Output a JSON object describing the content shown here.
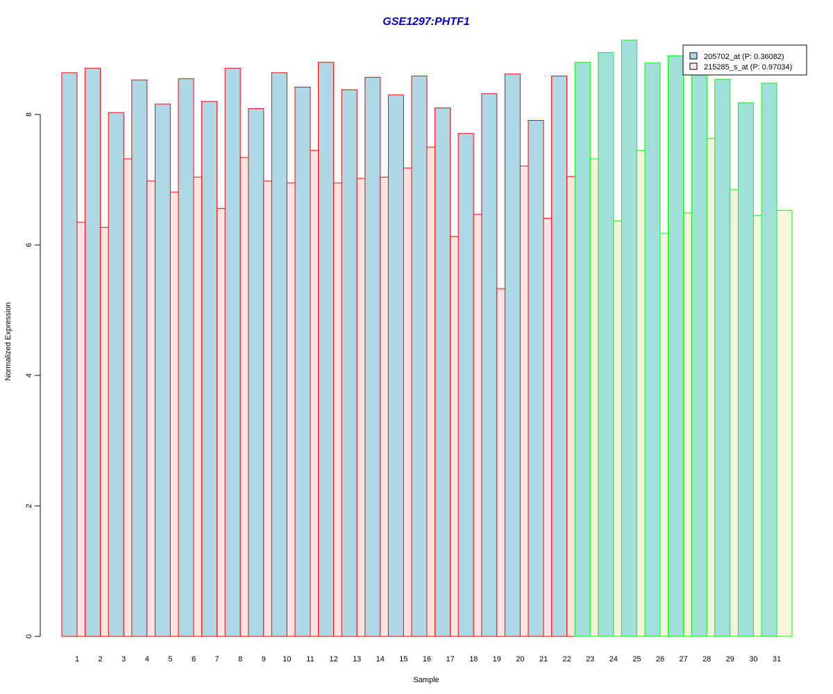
{
  "chart_data": {
    "type": "bar",
    "title": "GSE1297:PHTF1",
    "xlabel": "Sample",
    "ylabel": "Normalized Expression",
    "ylim": [
      0,
      9.2
    ],
    "yticks": [
      0,
      2,
      4,
      6,
      8
    ],
    "grid": false,
    "legend_position": "top-right",
    "categories": [
      "1",
      "2",
      "3",
      "4",
      "5",
      "6",
      "7",
      "8",
      "9",
      "10",
      "11",
      "12",
      "13",
      "14",
      "15",
      "16",
      "17",
      "18",
      "19",
      "20",
      "21",
      "22",
      "23",
      "24",
      "25",
      "26",
      "27",
      "28",
      "29",
      "30",
      "31"
    ],
    "series": [
      {
        "name": "205702_at (P: 0.36082)",
        "fill": "#add8e6",
        "values": [
          8.64,
          8.71,
          8.03,
          8.53,
          8.16,
          8.55,
          8.2,
          8.71,
          8.09,
          8.64,
          8.42,
          8.8,
          8.38,
          8.57,
          8.3,
          8.59,
          8.1,
          7.71,
          8.32,
          8.62,
          7.91,
          8.59,
          8.8,
          8.95,
          9.14,
          8.79,
          8.9,
          8.67,
          8.54,
          8.18,
          8.48
        ]
      },
      {
        "name": "215285_s_at (P: 0.97034)",
        "fill": "#ffe4e1",
        "values": [
          6.35,
          6.27,
          7.32,
          6.98,
          6.81,
          7.04,
          6.56,
          7.34,
          6.98,
          6.95,
          7.45,
          6.95,
          7.02,
          7.04,
          7.18,
          7.5,
          6.13,
          6.47,
          5.33,
          7.21,
          6.41,
          7.05,
          7.32,
          6.37,
          7.45,
          6.18,
          6.49,
          7.63,
          6.85,
          6.45,
          6.53
        ]
      }
    ],
    "groups": [
      {
        "border": "#ff0000",
        "alt_fill": "#ffe4e1",
        "count": 22
      },
      {
        "border": "#00ff00",
        "alt_fill": "#f5f5dc",
        "count": 9
      }
    ],
    "group2_primary_fill": "#a0e0d8"
  }
}
